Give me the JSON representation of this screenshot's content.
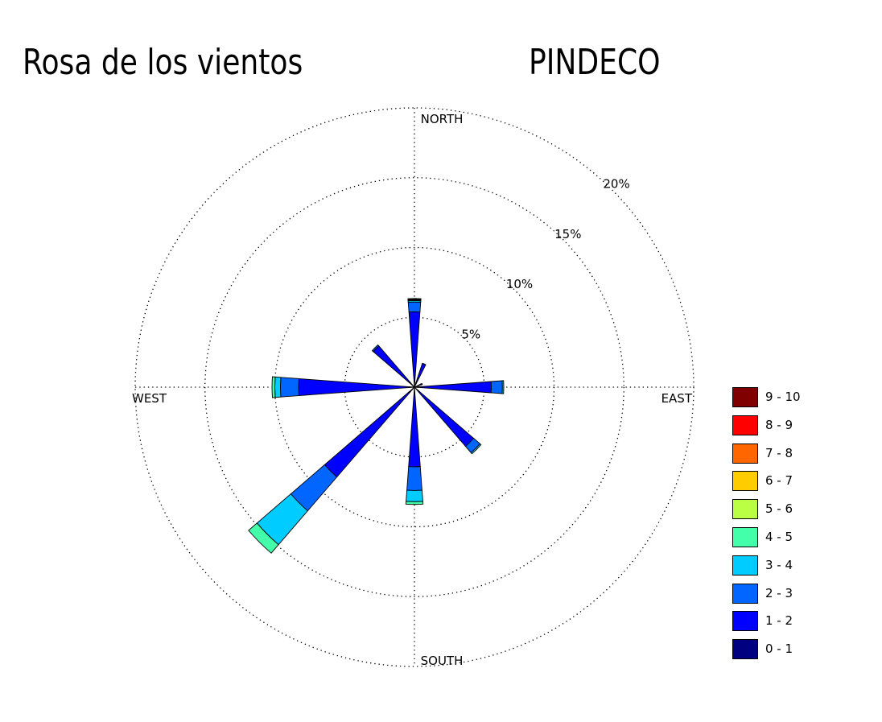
{
  "title": "Rosa de los vientos",
  "station": "PINDECO",
  "chart_data": {
    "type": "wind-rose",
    "title": "Rosa de los vientos",
    "subtitle": "PINDECO",
    "compass_labels": {
      "north": "NORTH",
      "east": "EAST",
      "south": "SOUTH",
      "west": "WEST"
    },
    "radial_ticks": [
      5,
      10,
      15,
      20
    ],
    "radial_tick_labels": [
      "5%",
      "10%",
      "15%",
      "20%"
    ],
    "radial_max": 20,
    "grid": "dotted",
    "legend_position": "right",
    "speed_bins": [
      "0 - 1",
      "1 - 2",
      "2 - 3",
      "3 - 4",
      "4 - 5",
      "5 - 6",
      "6 - 7",
      "7 - 8",
      "8 - 9",
      "9 - 10"
    ],
    "bin_colors": [
      "#000080",
      "#0000ff",
      "#0066ff",
      "#00ccff",
      "#44ffaa",
      "#bbff44",
      "#ffcc00",
      "#ff6600",
      "#ff0000",
      "#800000"
    ],
    "directions": [
      {
        "direction_deg": 0,
        "cumulative": [
          0.4,
          5.4,
          6.1,
          6.2,
          6.25,
          6.3,
          6.35
        ]
      },
      {
        "direction_deg": 22.5,
        "cumulative": [
          0.3,
          1.8,
          1.8
        ]
      },
      {
        "direction_deg": 67.5,
        "cumulative": [
          0.5,
          0.6
        ]
      },
      {
        "direction_deg": 90,
        "cumulative": [
          0.3,
          5.5,
          6.3,
          6.4
        ]
      },
      {
        "direction_deg": 135,
        "cumulative": [
          0.4,
          5.6,
          6.2,
          6.3
        ]
      },
      {
        "direction_deg": 180,
        "cumulative": [
          0.4,
          5.7,
          7.4,
          8.2,
          8.4
        ]
      },
      {
        "direction_deg": 225,
        "cumulative": [
          0.5,
          8.5,
          11.7,
          14.9,
          15.7
        ]
      },
      {
        "direction_deg": 270,
        "cumulative": [
          0.3,
          8.3,
          9.6,
          10.0,
          10.2
        ]
      },
      {
        "direction_deg": 315,
        "cumulative": [
          0.5,
          3.9,
          4.0
        ]
      }
    ]
  }
}
